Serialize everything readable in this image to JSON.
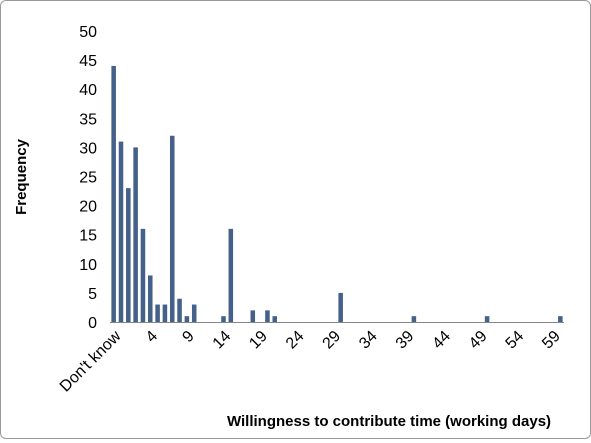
{
  "chart_data": {
    "type": "bar",
    "title": "",
    "xlabel": "Willingness to contribute time (working days)",
    "ylabel": "Frequency",
    "ylim": [
      0,
      50
    ],
    "y_ticks": [
      0,
      5,
      10,
      15,
      20,
      25,
      30,
      35,
      40,
      45,
      50
    ],
    "grid": false,
    "legend": "none",
    "bar_color": "#44618a",
    "categories": [
      "Don't know",
      "0",
      "1",
      "2",
      "3",
      "4",
      "5",
      "6",
      "7",
      "8",
      "9",
      "10",
      "11",
      "12",
      "13",
      "14",
      "15",
      "16",
      "17",
      "18",
      "19",
      "20",
      "21",
      "22",
      "23",
      "24",
      "25",
      "26",
      "27",
      "28",
      "29",
      "30",
      "31",
      "32",
      "33",
      "34",
      "35",
      "36",
      "37",
      "38",
      "39",
      "40",
      "41",
      "42",
      "43",
      "44",
      "45",
      "46",
      "47",
      "48",
      "49",
      "50",
      "51",
      "52",
      "53",
      "54",
      "55",
      "56",
      "57",
      "58",
      "59",
      "60"
    ],
    "x_tick_labels": [
      "Don't know",
      "4",
      "9",
      "14",
      "19",
      "24",
      "29",
      "34",
      "39",
      "44",
      "49",
      "54",
      "59"
    ],
    "values": [
      44,
      31,
      23,
      30,
      16,
      8,
      3,
      3,
      32,
      4,
      1,
      3,
      0,
      0,
      0,
      1,
      16,
      0,
      0,
      2,
      0,
      2,
      1,
      0,
      0,
      0,
      0,
      0,
      0,
      0,
      0,
      5,
      0,
      0,
      0,
      0,
      0,
      0,
      0,
      0,
      0,
      1,
      0,
      0,
      0,
      0,
      0,
      0,
      0,
      0,
      0,
      1,
      0,
      0,
      0,
      0,
      0,
      0,
      0,
      0,
      0,
      1
    ]
  }
}
